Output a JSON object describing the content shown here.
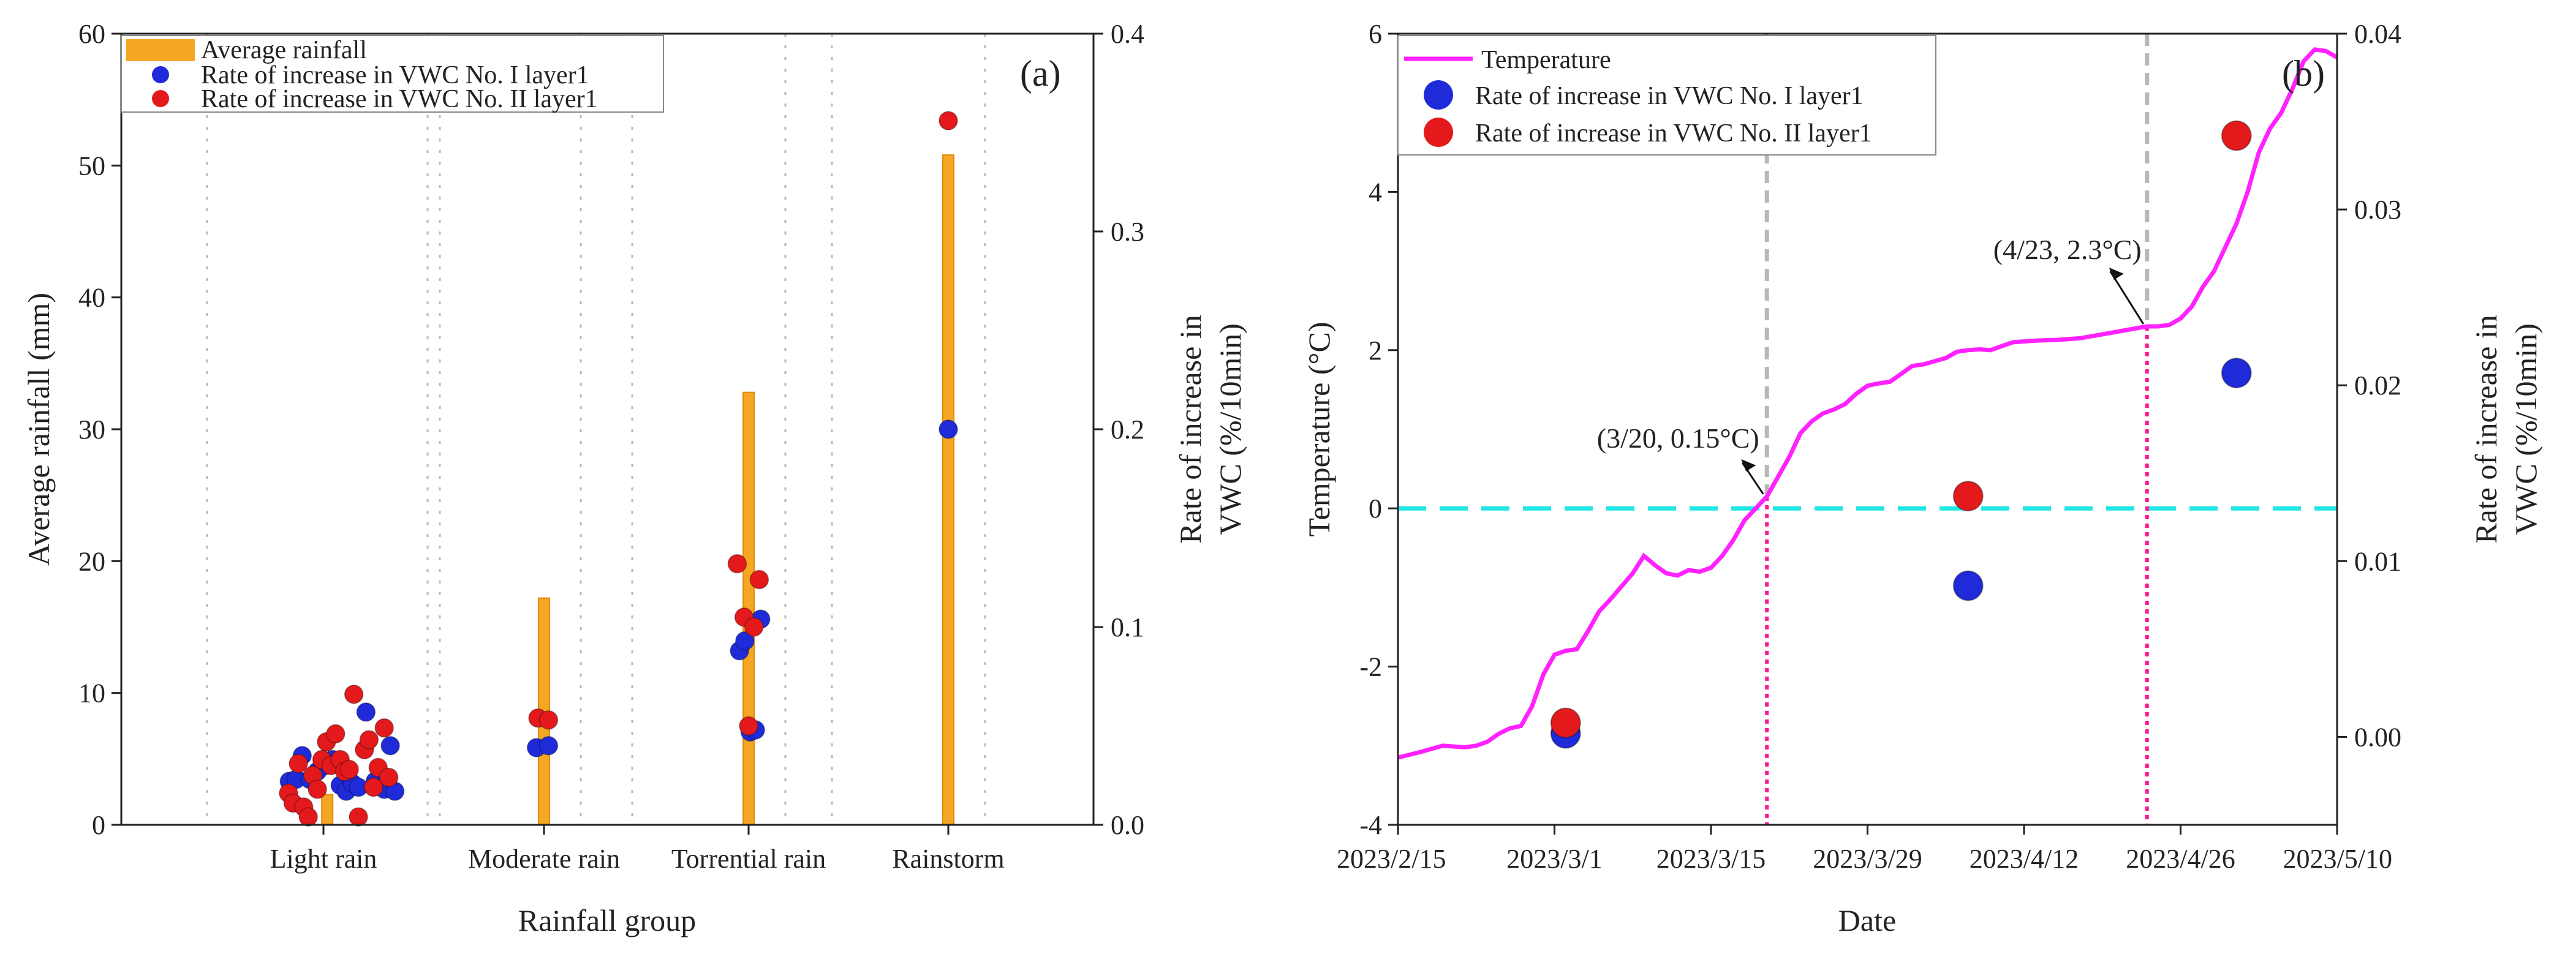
{
  "colors": {
    "rainfall": "#f5a623",
    "series_blue": "#1f2bd8",
    "series_red": "#e3191c",
    "temperature": "#ff22ff",
    "zero_line": "#22e6e6",
    "vline_gray": "#b8b8b8",
    "vline_pink": "#ff1493"
  },
  "chart_data": [
    {
      "type": "bar",
      "panel_label": "(a)",
      "xlabel": "Rainfall group",
      "ylabel": "Average rainfall (mm)",
      "ylabel_right": [
        "Rate of increase in",
        "VWC (%/10min)"
      ],
      "ylim": [
        0,
        60
      ],
      "ylim_right": [
        0,
        0.4
      ],
      "yticks": [
        "0",
        "10",
        "20",
        "30",
        "40",
        "50",
        "60"
      ],
      "yticks_right": [
        "0.0",
        "0.1",
        "0.2",
        "0.3",
        "0.4"
      ],
      "categories": [
        "Light rain",
        "Moderate rain",
        "Torrential rain",
        "Rainstorm"
      ],
      "legend": [
        "Average rainfall",
        "Rate of increase in VWC No. I layer1",
        "Rate of increase in VWC No. II layer1"
      ],
      "bars": [
        {
          "group": 0,
          "x": 0.05,
          "value": 2.3
        },
        {
          "group": 1,
          "x": 0.0,
          "value": 17.2
        },
        {
          "group": 2,
          "x": 0.0,
          "value": 32.8
        },
        {
          "group": 3,
          "x": 0.0,
          "value": 50.8
        }
      ],
      "series": [
        {
          "name": "Rate of increase in VWC No. I layer1",
          "points": [
            [
              0,
              -0.45,
              0.022
            ],
            [
              0,
              -0.36,
              0.023
            ],
            [
              0,
              -0.28,
              0.035
            ],
            [
              0,
              -0.18,
              0.023
            ],
            [
              0,
              -0.08,
              0.027
            ],
            [
              0,
              0.02,
              0.03
            ],
            [
              0,
              0.12,
              0.033
            ],
            [
              0,
              0.22,
              0.02
            ],
            [
              0,
              0.3,
              0.017
            ],
            [
              0,
              0.38,
              0.021
            ],
            [
              0,
              0.46,
              0.019
            ],
            [
              0,
              0.56,
              0.057
            ],
            [
              0,
              0.68,
              0.022
            ],
            [
              0,
              0.8,
              0.018
            ],
            [
              0,
              0.88,
              0.04
            ],
            [
              0,
              0.94,
              0.017
            ],
            [
              1,
              -0.1,
              0.039
            ],
            [
              1,
              0.06,
              0.04
            ],
            [
              2,
              -0.12,
              0.088
            ],
            [
              2,
              -0.05,
              0.093
            ],
            [
              2,
              0.02,
              0.047
            ],
            [
              2,
              0.09,
              0.048
            ],
            [
              2,
              0.16,
              0.104
            ],
            [
              3,
              0.0,
              0.2
            ]
          ]
        },
        {
          "name": "Rate of increase in VWC No. II layer1",
          "points": [
            [
              0,
              -0.46,
              0.016
            ],
            [
              0,
              -0.4,
              0.011
            ],
            [
              0,
              -0.33,
              0.031
            ],
            [
              0,
              -0.26,
              0.009
            ],
            [
              0,
              -0.2,
              0.004
            ],
            [
              0,
              -0.14,
              0.025
            ],
            [
              0,
              -0.08,
              0.018
            ],
            [
              0,
              -0.02,
              0.033
            ],
            [
              0,
              0.04,
              0.042
            ],
            [
              0,
              0.1,
              0.03
            ],
            [
              0,
              0.16,
              0.046
            ],
            [
              0,
              0.22,
              0.033
            ],
            [
              0,
              0.28,
              0.027
            ],
            [
              0,
              0.34,
              0.028
            ],
            [
              0,
              0.4,
              0.066
            ],
            [
              0,
              0.46,
              0.004
            ],
            [
              0,
              0.54,
              0.038
            ],
            [
              0,
              0.6,
              0.043
            ],
            [
              0,
              0.66,
              0.019
            ],
            [
              0,
              0.72,
              0.029
            ],
            [
              0,
              0.8,
              0.049
            ],
            [
              0,
              0.86,
              0.024
            ],
            [
              1,
              -0.08,
              0.054
            ],
            [
              1,
              0.06,
              0.053
            ],
            [
              2,
              -0.15,
              0.132
            ],
            [
              2,
              -0.06,
              0.105
            ],
            [
              2,
              0.0,
              0.05
            ],
            [
              2,
              0.07,
              0.1
            ],
            [
              2,
              0.14,
              0.124
            ],
            [
              3,
              0.0,
              0.356
            ]
          ]
        }
      ]
    },
    {
      "type": "line",
      "panel_label": "(b)",
      "xlabel": "Date",
      "ylabel": "Temperature (°C)",
      "ylabel_right": [
        "Rate of increase in",
        "VWC (%/10min)"
      ],
      "ylim": [
        -4,
        6
      ],
      "ylim_right": [
        -0.005,
        0.04
      ],
      "yticks": [
        "-4",
        "-2",
        "0",
        "2",
        "4",
        "6"
      ],
      "yticks_right": [
        "0.00",
        "0.01",
        "0.02",
        "0.03",
        "0.04"
      ],
      "xlim": [
        "2023-02-15",
        "2023-05-10"
      ],
      "xticks": [
        "2023/2/15",
        "2023/3/1",
        "2023/3/15",
        "2023/3/29",
        "2023/4/12",
        "2023/4/26",
        "2023/5/10"
      ],
      "legend": [
        "Temperature",
        "Rate of increase in VWC No. I layer1",
        "Rate of increase in VWC No. II layer1"
      ],
      "temperature": [
        [
          "2023-02-15",
          -3.15
        ],
        [
          "2023-02-17",
          -3.08
        ],
        [
          "2023-02-19",
          -3.0
        ],
        [
          "2023-02-21",
          -3.02
        ],
        [
          "2023-02-22",
          -3.0
        ],
        [
          "2023-02-23",
          -2.95
        ],
        [
          "2023-02-24",
          -2.85
        ],
        [
          "2023-02-25",
          -2.78
        ],
        [
          "2023-02-26",
          -2.75
        ],
        [
          "2023-02-27",
          -2.5
        ],
        [
          "2023-02-28",
          -2.1
        ],
        [
          "2023-03-01",
          -1.85
        ],
        [
          "2023-03-02",
          -1.8
        ],
        [
          "2023-03-03",
          -1.78
        ],
        [
          "2023-03-04",
          -1.55
        ],
        [
          "2023-03-05",
          -1.3
        ],
        [
          "2023-03-06",
          -1.15
        ],
        [
          "2023-03-08",
          -0.82
        ],
        [
          "2023-03-09",
          -0.6
        ],
        [
          "2023-03-10",
          -0.72
        ],
        [
          "2023-03-11",
          -0.82
        ],
        [
          "2023-03-12",
          -0.85
        ],
        [
          "2023-03-13",
          -0.78
        ],
        [
          "2023-03-14",
          -0.8
        ],
        [
          "2023-03-15",
          -0.75
        ],
        [
          "2023-03-16",
          -0.6
        ],
        [
          "2023-03-17",
          -0.4
        ],
        [
          "2023-03-18",
          -0.15
        ],
        [
          "2023-03-19",
          0.0
        ],
        [
          "2023-03-20",
          0.15
        ],
        [
          "2023-03-21",
          0.4
        ],
        [
          "2023-03-22",
          0.65
        ],
        [
          "2023-03-23",
          0.95
        ],
        [
          "2023-03-24",
          1.1
        ],
        [
          "2023-03-25",
          1.2
        ],
        [
          "2023-03-26",
          1.25
        ],
        [
          "2023-03-27",
          1.32
        ],
        [
          "2023-03-28",
          1.45
        ],
        [
          "2023-03-29",
          1.55
        ],
        [
          "2023-03-30",
          1.58
        ],
        [
          "2023-03-31",
          1.6
        ],
        [
          "2023-04-01",
          1.7
        ],
        [
          "2023-04-02",
          1.8
        ],
        [
          "2023-04-03",
          1.82
        ],
        [
          "2023-04-05",
          1.9
        ],
        [
          "2023-04-06",
          1.98
        ],
        [
          "2023-04-07",
          2.0
        ],
        [
          "2023-04-08",
          2.01
        ],
        [
          "2023-04-09",
          2.0
        ],
        [
          "2023-04-10",
          2.05
        ],
        [
          "2023-04-11",
          2.1
        ],
        [
          "2023-04-13",
          2.12
        ],
        [
          "2023-04-15",
          2.13
        ],
        [
          "2023-04-17",
          2.15
        ],
        [
          "2023-04-19",
          2.2
        ],
        [
          "2023-04-21",
          2.25
        ],
        [
          "2023-04-23",
          2.3
        ],
        [
          "2023-04-24",
          2.3
        ],
        [
          "2023-04-25",
          2.32
        ],
        [
          "2023-04-26",
          2.4
        ],
        [
          "2023-04-27",
          2.55
        ],
        [
          "2023-04-28",
          2.8
        ],
        [
          "2023-04-29",
          3.0
        ],
        [
          "2023-04-30",
          3.3
        ],
        [
          "2023-05-01",
          3.6
        ],
        [
          "2023-05-02",
          4.0
        ],
        [
          "2023-05-03",
          4.5
        ],
        [
          "2023-05-04",
          4.8
        ],
        [
          "2023-05-05",
          5.0
        ],
        [
          "2023-05-06",
          5.3
        ],
        [
          "2023-05-07",
          5.65
        ],
        [
          "2023-05-08",
          5.8
        ],
        [
          "2023-05-09",
          5.78
        ],
        [
          "2023-05-10",
          5.7
        ]
      ],
      "series": [
        {
          "name": "Rate of increase in VWC No. I layer1",
          "points": [
            [
              "2023-03-02",
              0.0002
            ],
            [
              "2023-04-07",
              0.0086
            ],
            [
              "2023-05-01",
              0.0207
            ]
          ]
        },
        {
          "name": "Rate of increase in VWC No. II layer1",
          "points": [
            [
              "2023-03-02",
              0.0008
            ],
            [
              "2023-04-07",
              0.0137
            ],
            [
              "2023-05-01",
              0.0342
            ]
          ]
        }
      ],
      "annotations": [
        {
          "text": "(3/20, 0.15°C)",
          "x": "2023-03-20",
          "y": 0.15
        },
        {
          "text": "(4/23, 2.3°C)",
          "x": "2023-04-23",
          "y": 2.3
        }
      ],
      "marker_dates": [
        "2023-03-20",
        "2023-04-23"
      ],
      "zero_line_y": 0
    }
  ]
}
